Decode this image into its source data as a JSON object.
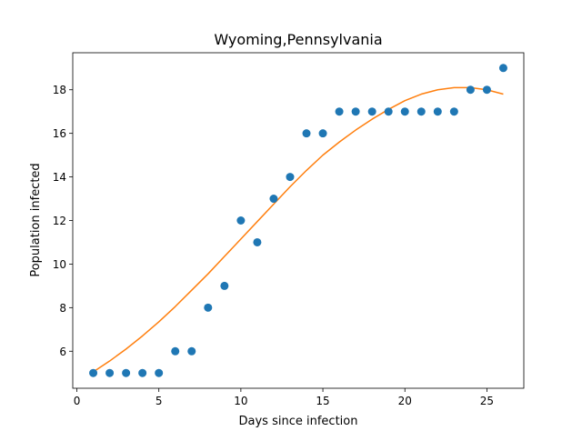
{
  "chart_data": {
    "type": "scatter",
    "title": "Wyoming,Pennsylvania",
    "xlabel": "Days since infection",
    "ylabel": "Population infected",
    "xlim": [
      -0.25,
      27.25
    ],
    "ylim": [
      4.3,
      19.7
    ],
    "xticks": [
      0,
      5,
      10,
      15,
      20,
      25
    ],
    "yticks": [
      6,
      8,
      10,
      12,
      14,
      16,
      18
    ],
    "grid": false,
    "series": [
      {
        "kind": "scatter",
        "color": "#1f77b4",
        "x": [
          1,
          2,
          3,
          4,
          5,
          6,
          7,
          8,
          9,
          10,
          11,
          12,
          13,
          14,
          15,
          16,
          17,
          18,
          19,
          20,
          21,
          22,
          23,
          24,
          25,
          26
        ],
        "y": [
          5,
          5,
          5,
          5,
          5,
          6,
          6,
          8,
          9,
          12,
          11,
          13,
          14,
          16,
          16,
          17,
          17,
          17,
          17,
          17,
          17,
          17,
          17,
          18,
          18,
          19
        ]
      },
      {
        "kind": "line",
        "color": "#ff7f0e",
        "x": [
          1,
          2,
          3,
          4,
          5,
          6,
          7,
          8,
          9,
          10,
          11,
          12,
          13,
          14,
          15,
          16,
          17,
          18,
          19,
          20,
          21,
          22,
          23,
          24,
          25,
          26
        ],
        "y": [
          5.05,
          5.55,
          6.1,
          6.7,
          7.35,
          8.05,
          8.8,
          9.55,
          10.35,
          11.15,
          11.95,
          12.75,
          13.55,
          14.3,
          15.0,
          15.6,
          16.15,
          16.65,
          17.1,
          17.5,
          17.8,
          18.0,
          18.1,
          18.1,
          18.0,
          17.8
        ]
      }
    ]
  }
}
